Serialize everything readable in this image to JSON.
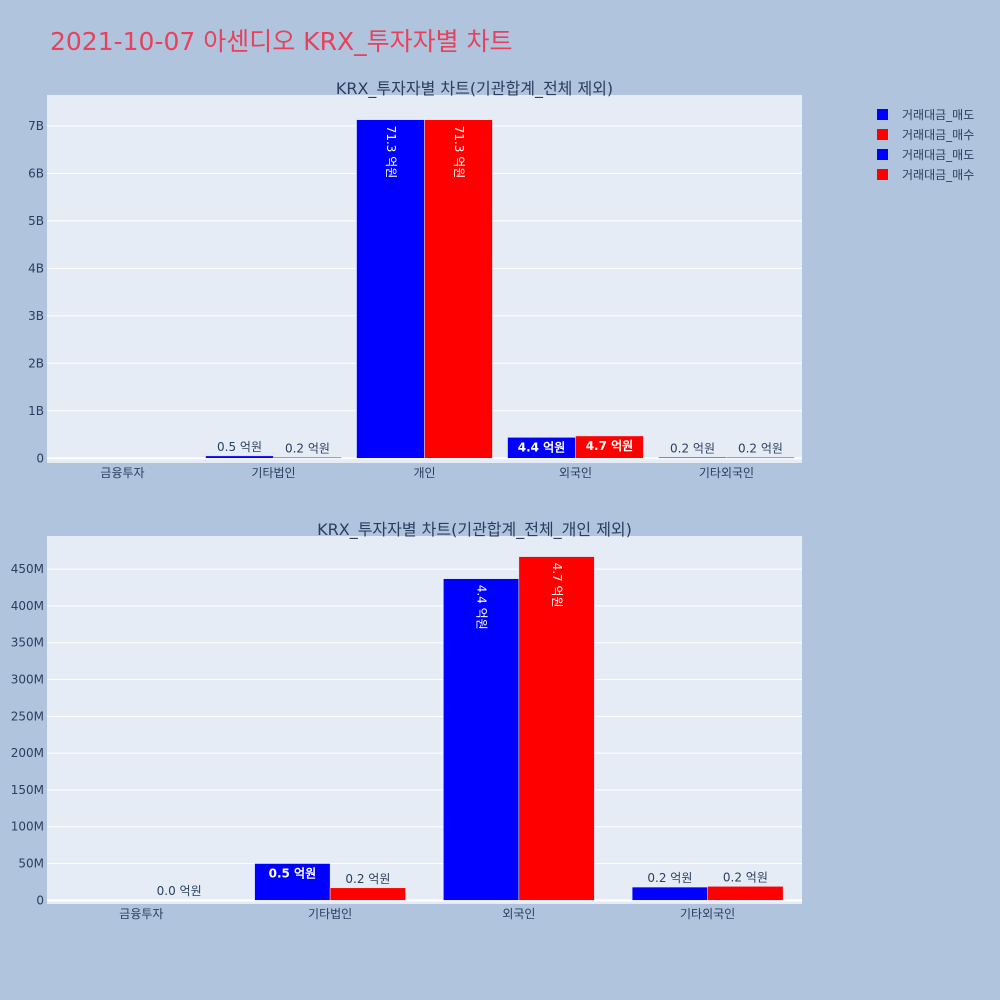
{
  "title": "2021-10-07 아센디오 KRX_투자자별 차트",
  "colors": {
    "sell": "#0000ff",
    "buy": "#ff0000",
    "plot_bg": "#e5ecf6",
    "page_bg": "#b0c4de",
    "title": "#e8415b"
  },
  "legend": {
    "placement": "top-right",
    "items": [
      {
        "label": "거래대금_매도",
        "color": "#0000ff"
      },
      {
        "label": "거래대금_매수",
        "color": "#ff0000"
      },
      {
        "label": "거래대금_매도",
        "color": "#0000ff"
      },
      {
        "label": "거래대금_매수",
        "color": "#ff0000"
      }
    ]
  },
  "chart_data": [
    {
      "type": "bar",
      "title": "KRX_투자자별 차트(기관합계_전체 제외)",
      "categories": [
        "금융투자",
        "기타법인",
        "개인",
        "외국인",
        "기타외국인"
      ],
      "ylim": [
        -100000000,
        7650000000
      ],
      "yticks": [
        0,
        1000000000,
        2000000000,
        3000000000,
        4000000000,
        5000000000,
        6000000000,
        7000000000
      ],
      "ytick_labels": [
        "0",
        "1B",
        "2B",
        "3B",
        "4B",
        "5B",
        "6B",
        "7B"
      ],
      "grid": true,
      "series": [
        {
          "name": "거래대금_매도",
          "values": [
            0,
            50000000,
            7130000000,
            440000000,
            20000000
          ],
          "labels": [
            "",
            "0.5 억원",
            "71.3 억원",
            "4.4 억원",
            "0.2 억원"
          ]
        },
        {
          "name": "거래대금_매수",
          "values": [
            0,
            20000000,
            7130000000,
            470000000,
            20000000
          ],
          "labels": [
            "",
            "0.2 억원",
            "71.3 억원",
            "4.7 억원",
            "0.2 억원"
          ]
        }
      ]
    },
    {
      "type": "bar",
      "title": "KRX_투자자별 차트(기관합계_전체_개인 제외)",
      "categories": [
        "금융투자",
        "기타법인",
        "외국인",
        "기타외국인"
      ],
      "ylim": [
        -5000000,
        495000000
      ],
      "yticks": [
        0,
        50000000,
        100000000,
        150000000,
        200000000,
        250000000,
        300000000,
        350000000,
        400000000,
        450000000
      ],
      "ytick_labels": [
        "0",
        "50M",
        "100M",
        "150M",
        "200M",
        "250M",
        "300M",
        "350M",
        "400M",
        "450M"
      ],
      "grid": true,
      "series": [
        {
          "name": "거래대금_매도",
          "values": [
            0,
            50000000,
            437000000,
            18000000
          ],
          "labels": [
            "",
            "0.5 억원",
            "4.4 억원",
            "0.2 억원"
          ]
        },
        {
          "name": "거래대금_매수",
          "values": [
            200000,
            17000000,
            467000000,
            19000000
          ],
          "labels": [
            "0.0 억원",
            "0.2 억원",
            "4.7 억원",
            "0.2 억원"
          ]
        }
      ]
    }
  ]
}
